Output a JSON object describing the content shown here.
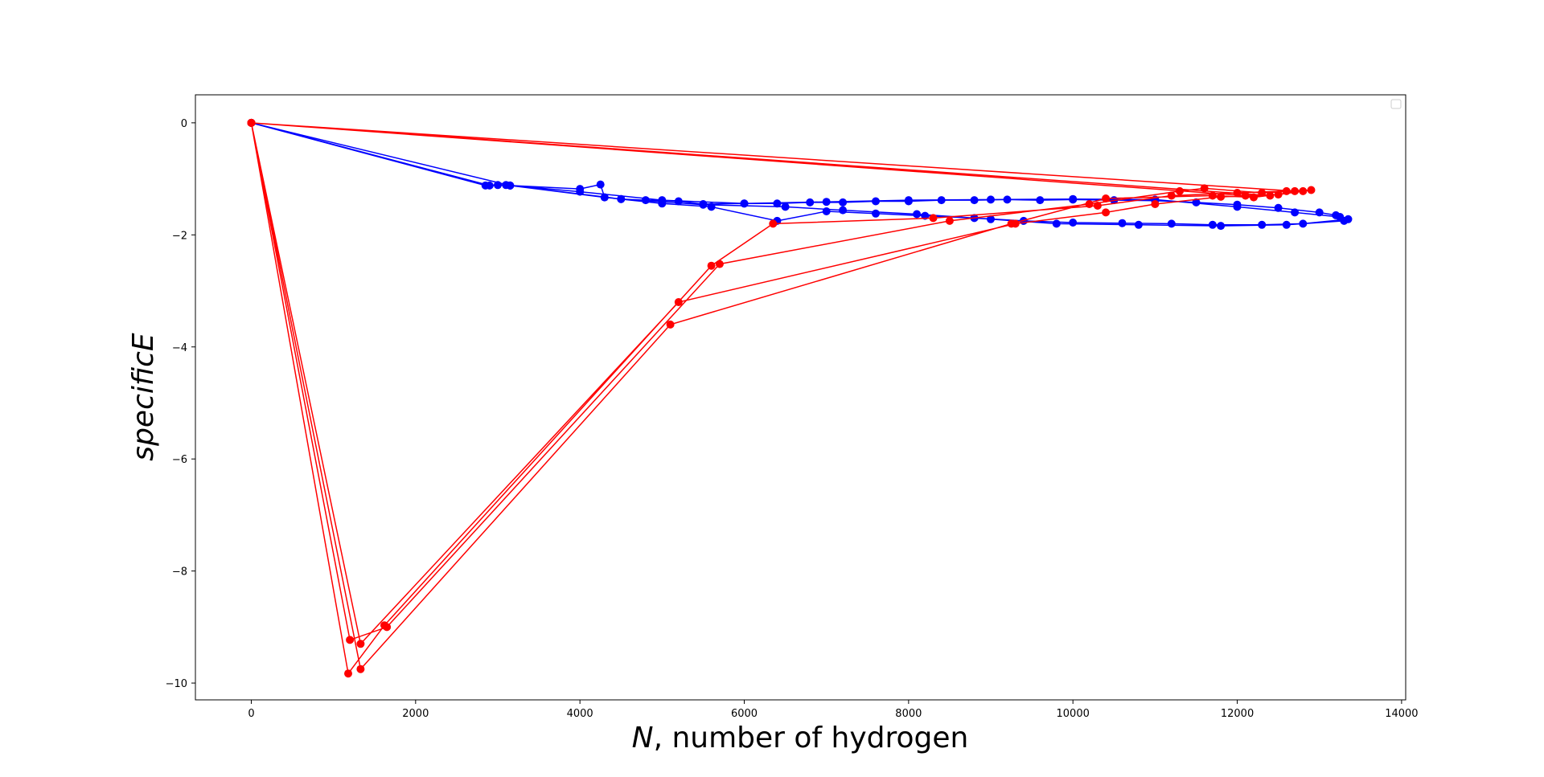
{
  "chart_data": {
    "type": "line",
    "xlabel_italic": "N",
    "xlabel_rest": ", number of hydrogen",
    "ylabel": "specificE",
    "xlim": [
      -680,
      14050
    ],
    "ylim": [
      -10.3,
      0.5
    ],
    "xticks": [
      0,
      2000,
      4000,
      6000,
      8000,
      10000,
      12000,
      14000
    ],
    "yticks": [
      0,
      -2,
      -4,
      -6,
      -8,
      -10
    ],
    "xtick_labels": [
      "0",
      "2000",
      "4000",
      "6000",
      "8000",
      "10000",
      "12000",
      "14000"
    ],
    "ytick_labels": [
      "0",
      "−2",
      "−4",
      "−6",
      "−8",
      "−10"
    ],
    "grid": false,
    "legend": "top-right, empty",
    "series": [
      {
        "color": "#0000ff",
        "points": [
          [
            0,
            0
          ],
          [
            2850,
            -1.12
          ],
          [
            3000,
            -1.11
          ],
          [
            3150,
            -1.12
          ],
          [
            4000,
            -1.18
          ],
          [
            4250,
            -1.1
          ],
          [
            4300,
            -1.33
          ],
          [
            4500,
            -1.36
          ],
          [
            4800,
            -1.38
          ],
          [
            5200,
            -1.4
          ],
          [
            5500,
            -1.45
          ],
          [
            6000,
            -1.44
          ],
          [
            6400,
            -1.44
          ],
          [
            6800,
            -1.42
          ],
          [
            7200,
            -1.42
          ],
          [
            7600,
            -1.4
          ],
          [
            8000,
            -1.4
          ],
          [
            8400,
            -1.38
          ],
          [
            8800,
            -1.38
          ],
          [
            9200,
            -1.37
          ],
          [
            9600,
            -1.38
          ],
          [
            10000,
            -1.37
          ],
          [
            10500,
            -1.38
          ],
          [
            11000,
            -1.39
          ],
          [
            11500,
            -1.42
          ],
          [
            12000,
            -1.46
          ],
          [
            12500,
            -1.52
          ],
          [
            13000,
            -1.6
          ],
          [
            13200,
            -1.65
          ],
          [
            13350,
            -1.72
          ],
          [
            12800,
            -1.8
          ],
          [
            12300,
            -1.82
          ],
          [
            11700,
            -1.82
          ],
          [
            11200,
            -1.8
          ],
          [
            10600,
            -1.79
          ],
          [
            10000,
            -1.78
          ],
          [
            9400,
            -1.75
          ],
          [
            8800,
            -1.7
          ],
          [
            8200,
            -1.66
          ],
          [
            7600,
            -1.62
          ],
          [
            7000,
            -1.58
          ],
          [
            6400,
            -1.75
          ],
          [
            5600,
            -1.5
          ],
          [
            5000,
            -1.44
          ],
          [
            4300,
            -1.33
          ],
          [
            3150,
            -1.12
          ],
          [
            0,
            0
          ],
          [
            2900,
            -1.12
          ],
          [
            3100,
            -1.11
          ],
          [
            4000,
            -1.23
          ],
          [
            5000,
            -1.38
          ],
          [
            6000,
            -1.44
          ],
          [
            7000,
            -1.41
          ],
          [
            8000,
            -1.38
          ],
          [
            9000,
            -1.37
          ],
          [
            10000,
            -1.36
          ],
          [
            11000,
            -1.37
          ],
          [
            12000,
            -1.5
          ],
          [
            12700,
            -1.6
          ],
          [
            13250,
            -1.68
          ],
          [
            13300,
            -1.75
          ],
          [
            12600,
            -1.82
          ],
          [
            11800,
            -1.84
          ],
          [
            10800,
            -1.82
          ],
          [
            9800,
            -1.8
          ],
          [
            9000,
            -1.72
          ],
          [
            8100,
            -1.63
          ],
          [
            7200,
            -1.56
          ],
          [
            6500,
            -1.5
          ],
          [
            5500,
            -1.46
          ],
          [
            4500,
            -1.36
          ],
          [
            3150,
            -1.12
          ]
        ]
      },
      {
        "color": "#ff0000",
        "points": [
          [
            0,
            0
          ],
          [
            1180,
            -9.83
          ],
          [
            1620,
            -8.97
          ],
          [
            5600,
            -2.55
          ],
          [
            6350,
            -1.8
          ],
          [
            8300,
            -1.7
          ],
          [
            10300,
            -1.48
          ],
          [
            11200,
            -1.3
          ],
          [
            12000,
            -1.25
          ],
          [
            12600,
            -1.22
          ],
          [
            12900,
            -1.2
          ],
          [
            12500,
            -1.28
          ],
          [
            12100,
            -1.3
          ],
          [
            0,
            0
          ],
          [
            1200,
            -9.23
          ],
          [
            1650,
            -9.0
          ],
          [
            5700,
            -2.52
          ],
          [
            8500,
            -1.75
          ],
          [
            10200,
            -1.45
          ],
          [
            11300,
            -1.22
          ],
          [
            11600,
            -1.17
          ],
          [
            12300,
            -1.25
          ],
          [
            12700,
            -1.22
          ],
          [
            0,
            0
          ],
          [
            1330,
            -9.3
          ],
          [
            5200,
            -3.2
          ],
          [
            9300,
            -1.8
          ],
          [
            10400,
            -1.6
          ],
          [
            11000,
            -1.45
          ],
          [
            11800,
            -1.32
          ],
          [
            12400,
            -1.3
          ],
          [
            0,
            0
          ],
          [
            1330,
            -9.75
          ],
          [
            5100,
            -3.6
          ],
          [
            9250,
            -1.8
          ],
          [
            10400,
            -1.35
          ],
          [
            11700,
            -1.3
          ],
          [
            12200,
            -1.33
          ],
          [
            12800,
            -1.22
          ]
        ]
      }
    ]
  }
}
